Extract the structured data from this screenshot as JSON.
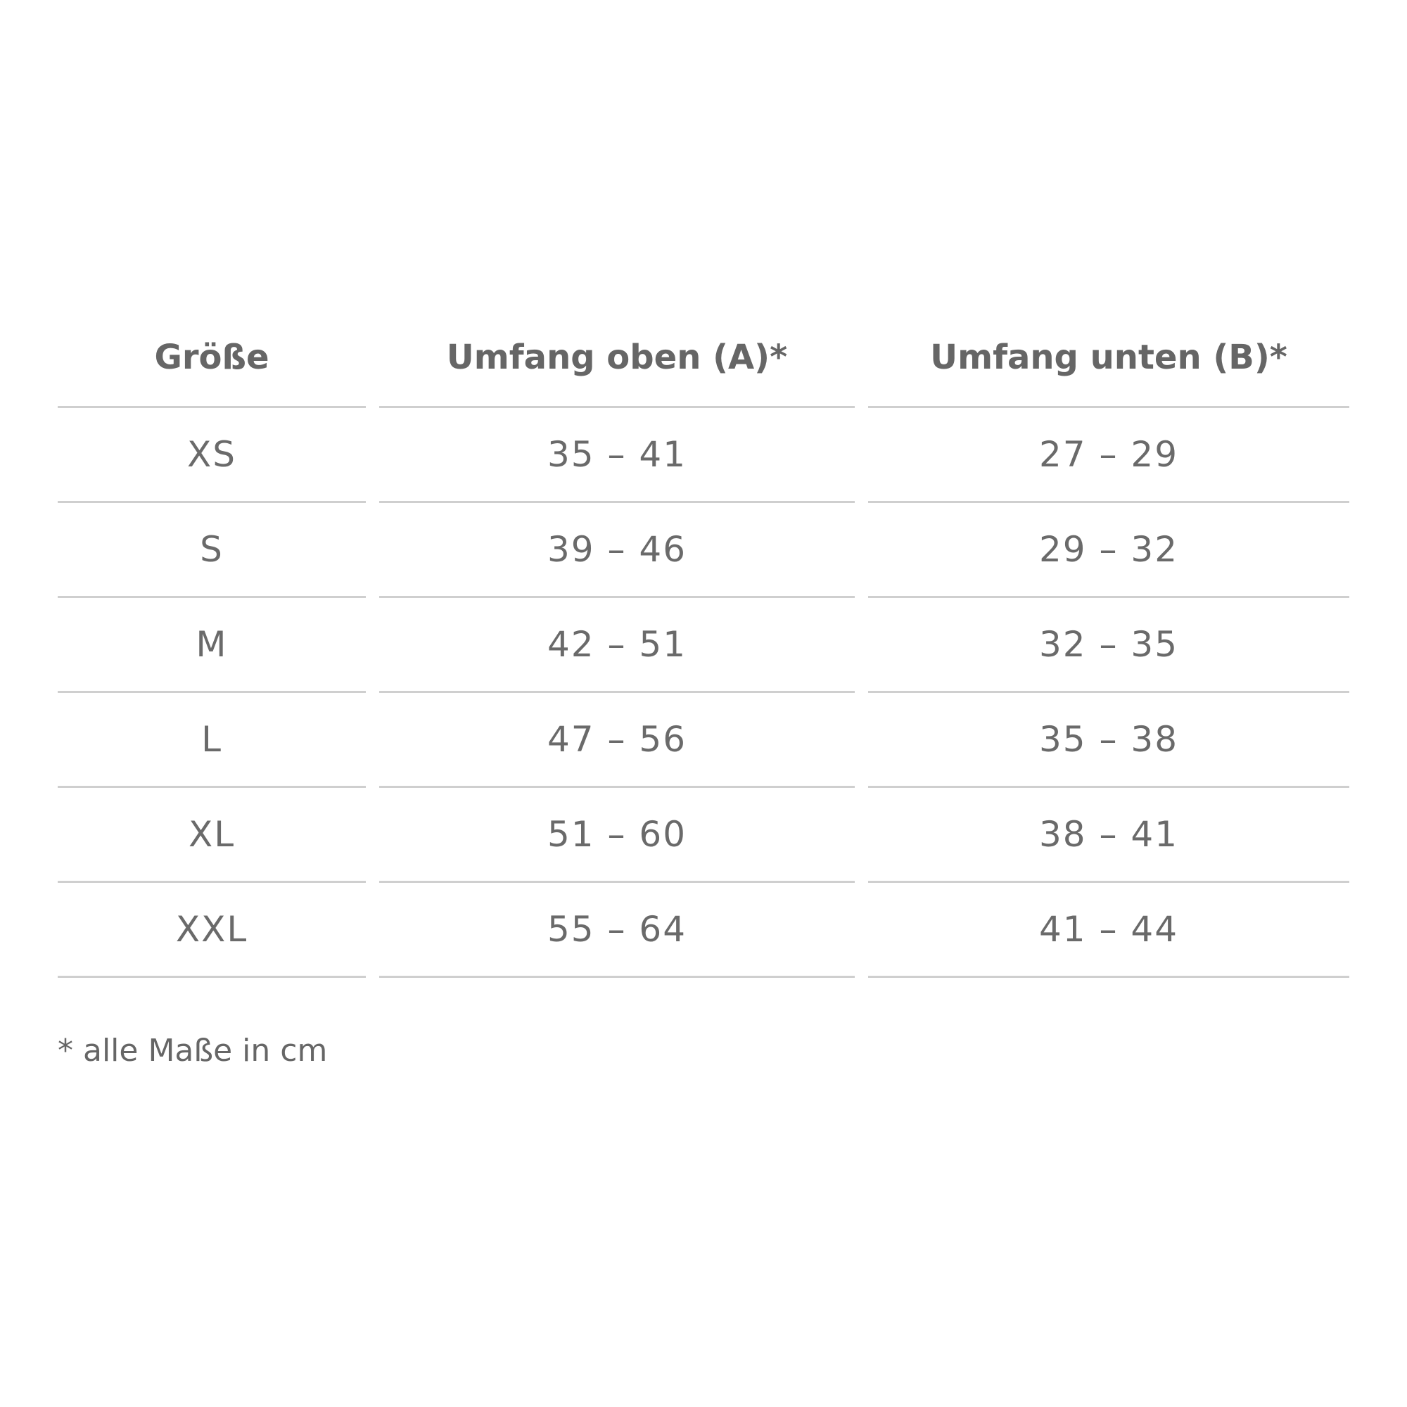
{
  "table": {
    "headers": [
      "Größe",
      "Umfang oben (A)*",
      "Umfang unten (B)*"
    ],
    "rows": [
      [
        "XS",
        "35 – 41",
        "27 – 29"
      ],
      [
        "S",
        "39 – 46",
        "29 – 32"
      ],
      [
        "M",
        "42 – 51",
        "32 – 35"
      ],
      [
        "L",
        "47 – 56",
        "35 – 38"
      ],
      [
        "XL",
        "51 – 60",
        "38 – 41"
      ],
      [
        "XXL",
        "55 – 64",
        "41 – 44"
      ]
    ]
  },
  "footnote": "* alle Maße in cm",
  "colors": {
    "text": "#666666",
    "rule": "#cfcfcf"
  }
}
